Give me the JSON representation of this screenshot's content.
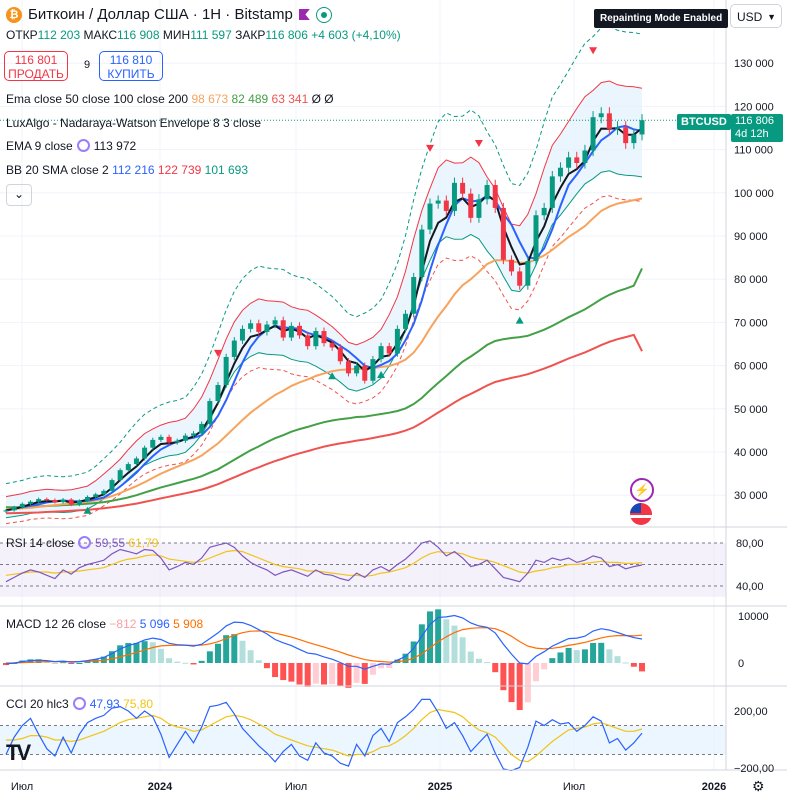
{
  "header": {
    "symbol_title": "Биткоин / Доллар США · 1H · Bitstamp",
    "coin_glyph": "₿",
    "open_label": "ОТКР",
    "open_value": "112 203",
    "high_label": "МАКС",
    "high_value": "116 908",
    "low_label": "МИН",
    "low_value": "111 597",
    "close_label": "ЗАКР",
    "close_value": "116 806",
    "change": "+4 603 (+4,10%)",
    "sell_price": "116 801",
    "sell_label": "ПРОДАТЬ",
    "spread": "9",
    "buy_price": "116 810",
    "buy_label": "КУПИТЬ",
    "currency": "USD",
    "repainting_badge": "Repainting Mode Enabled",
    "ticker_label": "BTCUSD",
    "price_label": "116 806",
    "countdown": "4d 12h"
  },
  "indicators": {
    "ema_label": "Ema close 50 close 100 close 200",
    "ema_v1": "98 673",
    "ema_v2": "82 489",
    "ema_v3": "63 341",
    "ema_v4": "Ø",
    "ema_v5": "Ø",
    "luxalgo_label": "LuxAlgo - Nadaraya-Watson Envelope 8 3 close",
    "ema9_label": "EMA 9 close",
    "ema9_value": "113 972",
    "bb_label": "BB 20 SMA close 2",
    "bb_v1": "112 216",
    "bb_v2": "122 739",
    "bb_v3": "101 693",
    "rsi_label": "RSI 14 close",
    "rsi_v1": "59,55",
    "rsi_v2": "61,79",
    "macd_label": "MACD 12 26 close",
    "macd_v1": "−812",
    "macd_v2": "5 096",
    "macd_v3": "5 908",
    "cci_label": "CCI 20 hlc3",
    "cci_v1": "47,93",
    "cci_v2": "75,80"
  },
  "colors": {
    "up": "#089981",
    "down": "#f23645",
    "ema50": "#f7a35c",
    "ema100": "#43a047",
    "ema200": "#ef5350",
    "ema9": "#131722",
    "bb_basis": "#2962ff",
    "envelope_fill": "#e3f2fd",
    "rsi": "#7e57c2",
    "signal": "#f0c419"
  },
  "chart_data": [
    {
      "type": "candlestick",
      "title": "Биткоин / Доллар США · 1H · Bitstamp",
      "y_ticks": [
        "130 000",
        "120 000",
        "110 000",
        "100 000",
        "90 000",
        "80 000",
        "70 000",
        "60 000",
        "50 000",
        "40 000",
        "30 000"
      ],
      "x_ticks": [
        "Июл",
        "2024",
        "Июл",
        "2025",
        "Июл",
        "2026"
      ],
      "ylim": [
        25000,
        135000
      ],
      "close": [
        26500,
        27200,
        28000,
        28500,
        29100,
        28900,
        28400,
        29000,
        27800,
        28700,
        29600,
        30200,
        31000,
        33500,
        35800,
        37200,
        38500,
        41000,
        42800,
        43500,
        42200,
        42600,
        43800,
        44300,
        46500,
        51800,
        55500,
        62000,
        65800,
        68500,
        69800,
        67800,
        69500,
        70500,
        66500,
        69200,
        67000,
        64500,
        68000,
        65200,
        64200,
        61000,
        58200,
        60000,
        56500,
        61500,
        64500,
        62800,
        68500,
        72000,
        80500,
        91500,
        97500,
        98200,
        95800,
        102300,
        99800,
        94200,
        98500,
        101800,
        96500,
        84500,
        81800,
        78500,
        84200,
        94800,
        96500,
        103800,
        105800,
        108200,
        106900,
        109800,
        117500,
        118400,
        114800,
        115200,
        111500,
        113500,
        116806
      ],
      "ema50_values": [
        26800,
        26850,
        26950,
        27100,
        27300,
        27500,
        27700,
        27900,
        28050,
        28250,
        28500,
        28800,
        29200,
        29800,
        30500,
        31300,
        32100,
        33000,
        34000,
        35000,
        35800,
        36600,
        37400,
        38200,
        39200,
        40600,
        42000,
        43800,
        45600,
        47400,
        49100,
        50500,
        51900,
        53200,
        54200,
        55300,
        56100,
        56800,
        57600,
        58200,
        58700,
        59000,
        59100,
        59300,
        59200,
        59400,
        59700,
        59900,
        60500,
        61400,
        63000,
        65500,
        68600,
        71400,
        73800,
        76500,
        78600,
        80000,
        81700,
        83500,
        84400,
        84400,
        84200,
        83800,
        83800,
        84600,
        85500,
        86800,
        88300,
        89800,
        91000,
        92300,
        94100,
        95800,
        96800,
        97500,
        97900,
        98300,
        98673
      ],
      "ema100_values": [
        27200,
        27200,
        27250,
        27300,
        27400,
        27500,
        27600,
        27700,
        27800,
        27900,
        28000,
        28200,
        28400,
        28700,
        29100,
        29500,
        30000,
        30600,
        31200,
        31800,
        32300,
        32800,
        33300,
        33800,
        34400,
        35200,
        36000,
        37100,
        38200,
        39300,
        40400,
        41300,
        42300,
        43200,
        43900,
        44700,
        45300,
        45800,
        46400,
        46900,
        47300,
        47600,
        47800,
        48100,
        48200,
        48500,
        48800,
        49100,
        49500,
        50100,
        51100,
        52500,
        54300,
        56000,
        57600,
        59300,
        60900,
        62100,
        63400,
        64800,
        65700,
        66100,
        66400,
        66600,
        66900,
        67600,
        68300,
        69200,
        70200,
        71200,
        72100,
        73000,
        74200,
        75400,
        76400,
        77200,
        77800,
        78500,
        82489
      ],
      "ema200_values": [
        25800,
        25850,
        25900,
        25950,
        26000,
        26100,
        26200,
        26300,
        26400,
        26500,
        26600,
        26800,
        27000,
        27200,
        27450,
        27750,
        28050,
        28450,
        28850,
        29250,
        29650,
        30050,
        30450,
        30850,
        31300,
        31900,
        32550,
        33350,
        34150,
        34950,
        35750,
        36450,
        37200,
        37900,
        38500,
        39150,
        39700,
        40200,
        40750,
        41250,
        41650,
        42000,
        42300,
        42650,
        42900,
        43250,
        43600,
        43950,
        44400,
        44950,
        45700,
        46750,
        47950,
        49150,
        50250,
        51450,
        52550,
        53450,
        54400,
        55400,
        56200,
        56700,
        57150,
        57550,
        58000,
        58650,
        59300,
        60050,
        60850,
        61650,
        62350,
        63050,
        63900,
        64750,
        65500,
        66100,
        66600,
        67100,
        63341
      ],
      "ema9_last": 113972,
      "bb_basis_last": 112216,
      "bb_upper_last": 122739,
      "bb_lower_last": 101693
    },
    {
      "type": "line",
      "title": "RSI 14 close",
      "y_ticks": [
        "80,00",
        "40,00"
      ],
      "rsi_last": 59.55,
      "signal_last": 61.79,
      "rsi": [
        44,
        48,
        52,
        55,
        53,
        50,
        47,
        55,
        51,
        57,
        60,
        62,
        64,
        70,
        74,
        72,
        70,
        74,
        73,
        66,
        55,
        58,
        62,
        60,
        66,
        76,
        78,
        80,
        76,
        68,
        62,
        58,
        55,
        50,
        53,
        55,
        52,
        49,
        55,
        51,
        50,
        47,
        45,
        52,
        48,
        55,
        58,
        54,
        60,
        65,
        72,
        80,
        82,
        76,
        68,
        72,
        66,
        58,
        60,
        64,
        56,
        48,
        46,
        44,
        52,
        64,
        62,
        66,
        64,
        66,
        62,
        64,
        68,
        66,
        58,
        60,
        56,
        58,
        59.55
      ],
      "signal": [
        50,
        51,
        52,
        53,
        53,
        53,
        52,
        53,
        53,
        54,
        55,
        56,
        57,
        60,
        63,
        65,
        66,
        68,
        69,
        68,
        65,
        64,
        63,
        62,
        63,
        66,
        69,
        72,
        73,
        72,
        69,
        66,
        63,
        60,
        58,
        57,
        56,
        54,
        54,
        53,
        52,
        51,
        50,
        50,
        49,
        50,
        52,
        53,
        55,
        57,
        61,
        66,
        70,
        72,
        71,
        71,
        70,
        67,
        65,
        64,
        62,
        59,
        56,
        53,
        52,
        54,
        55,
        57,
        58,
        60,
        60,
        61,
        62,
        63,
        62,
        62,
        61,
        61,
        61.79
      ]
    },
    {
      "type": "bar",
      "title": "MACD 12 26 close",
      "y_ticks": [
        "10000",
        "0"
      ],
      "macd_last": 5096,
      "signal_last": 5908,
      "hist_last": -812,
      "macd": [
        -200,
        0,
        300,
        500,
        600,
        500,
        300,
        400,
        200,
        300,
        500,
        800,
        1200,
        2000,
        3000,
        3700,
        4200,
        4900,
        5300,
        5000,
        4200,
        3900,
        3800,
        3600,
        4000,
        5200,
        6400,
        7900,
        8700,
        8600,
        8000,
        7100,
        6200,
        5000,
        4300,
        3700,
        2900,
        2100,
        1900,
        1300,
        800,
        100,
        -700,
        -700,
        -1300,
        -700,
        -200,
        -300,
        600,
        1400,
        3100,
        5700,
        8200,
        9700,
        9800,
        10100,
        9600,
        8500,
        7900,
        7600,
        6400,
        4000,
        1900,
        0,
        -200,
        1400,
        2400,
        3600,
        4400,
        5200,
        5300,
        5700,
        6800,
        7300,
        7000,
        6500,
        5900,
        5400,
        5096
      ],
      "signal": [
        0,
        0,
        60,
        150,
        240,
        290,
        300,
        320,
        300,
        300,
        340,
        430,
        580,
        860,
        1290,
        1770,
        2260,
        2790,
        3290,
        3630,
        3740,
        3770,
        3780,
        3740,
        3790,
        4070,
        4540,
        5210,
        5910,
        6450,
        6760,
        6830,
        6700,
        6360,
        5950,
        5500,
        4980,
        4400,
        3900,
        3380,
        2860,
        2310,
        1700,
        1220,
        720,
        440,
        310,
        190,
        270,
        500,
        1020,
        1960,
        3210,
        4510,
        5570,
        6480,
        7110,
        7390,
        7490,
        7510,
        7290,
        6630,
        5680,
        4550,
        3600,
        3160,
        3010,
        3130,
        3380,
        3740,
        4050,
        4380,
        4860,
        5350,
        5680,
        5840,
        5850,
        5760,
        5908
      ]
    },
    {
      "type": "line",
      "title": "CCI 20 hlc3",
      "y_ticks": [
        "200,00",
        "−200,00"
      ],
      "cci_last": 47.93,
      "signal_last": 75.8,
      "cci": [
        -100,
        20,
        100,
        150,
        40,
        -60,
        -110,
        20,
        -90,
        40,
        120,
        150,
        170,
        220,
        230,
        200,
        150,
        200,
        160,
        40,
        -120,
        -30,
        60,
        -20,
        90,
        230,
        240,
        260,
        180,
        80,
        20,
        -40,
        -90,
        -150,
        -80,
        -30,
        -110,
        -140,
        -20,
        -90,
        -110,
        -160,
        -180,
        -30,
        -110,
        30,
        80,
        -10,
        120,
        160,
        210,
        280,
        280,
        190,
        80,
        120,
        30,
        -80,
        -20,
        40,
        -90,
        -200,
        -210,
        -190,
        -50,
        130,
        100,
        140,
        110,
        120,
        60,
        100,
        160,
        130,
        -20,
        10,
        -70,
        -20,
        47.93
      ],
      "signal": [
        0,
        0,
        10,
        30,
        30,
        20,
        0,
        0,
        -10,
        0,
        20,
        40,
        60,
        90,
        120,
        140,
        150,
        160,
        170,
        150,
        110,
        90,
        80,
        60,
        70,
        100,
        130,
        160,
        170,
        160,
        140,
        110,
        80,
        40,
        20,
        0,
        -20,
        -40,
        -50,
        -60,
        -70,
        -90,
        -110,
        -100,
        -100,
        -80,
        -50,
        -40,
        -10,
        30,
        80,
        140,
        190,
        210,
        200,
        190,
        160,
        110,
        70,
        50,
        20,
        -40,
        -100,
        -140,
        -150,
        -110,
        -60,
        -10,
        30,
        70,
        80,
        90,
        110,
        120,
        100,
        80,
        60,
        60,
        75.8
      ]
    }
  ]
}
